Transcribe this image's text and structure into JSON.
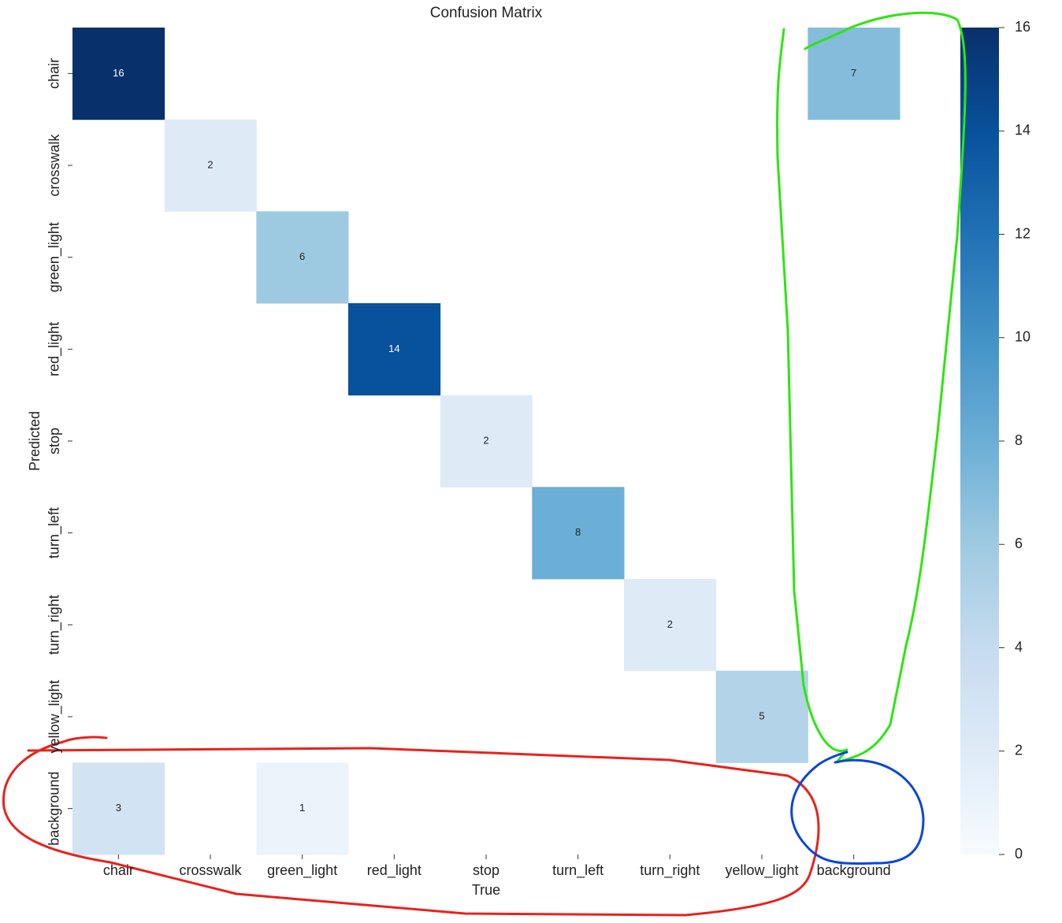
{
  "chart_data": {
    "type": "heatmap",
    "title": "Confusion Matrix",
    "x_label": "True",
    "y_label": "Predicted",
    "categories": [
      "chair",
      "crosswalk",
      "green_light",
      "red_light",
      "stop",
      "turn_left",
      "turn_right",
      "yellow_light",
      "background"
    ],
    "values": [
      [
        16,
        null,
        null,
        null,
        null,
        null,
        null,
        null,
        7
      ],
      [
        null,
        2,
        null,
        null,
        null,
        null,
        null,
        null,
        null
      ],
      [
        null,
        null,
        6,
        null,
        null,
        null,
        null,
        null,
        null
      ],
      [
        null,
        null,
        null,
        14,
        null,
        null,
        null,
        null,
        null
      ],
      [
        null,
        null,
        null,
        null,
        2,
        null,
        null,
        null,
        null
      ],
      [
        null,
        null,
        null,
        null,
        null,
        8,
        null,
        null,
        null
      ],
      [
        null,
        null,
        null,
        null,
        null,
        null,
        2,
        null,
        null
      ],
      [
        null,
        null,
        null,
        null,
        null,
        null,
        null,
        5,
        null
      ],
      [
        3,
        null,
        1,
        null,
        null,
        null,
        null,
        null,
        null
      ]
    ],
    "colormap": "Blues",
    "clim": [
      0,
      16
    ],
    "cticks": [
      0,
      2,
      4,
      6,
      8,
      10,
      12,
      14,
      16
    ]
  }
}
